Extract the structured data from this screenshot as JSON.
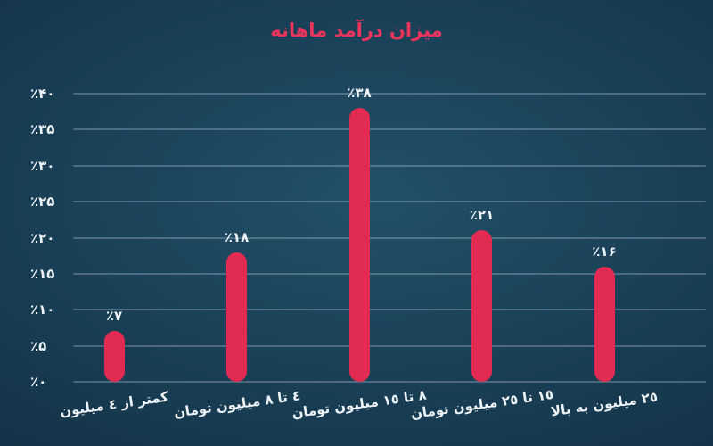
{
  "chart_data": {
    "type": "bar",
    "title": "میزان درآمد ماهانه",
    "direction": "rtl",
    "categories": [
      "کمتر از ٤ میلیون",
      "٤ تا ٨ میلیون تومان",
      "٨ تا ١٥ میلیون تومان",
      "١٥ تا ٢٥ میلیون تومان",
      "٢٥ میلیون به بالا"
    ],
    "values": [
      7,
      18,
      38,
      21,
      16
    ],
    "value_labels": [
      "٪۷",
      "٪۱۸",
      "٪۳۸",
      "٪۲۱",
      "٪۱۶"
    ],
    "y_ticks": [
      {
        "label": "٪۴۰",
        "value": 40
      },
      {
        "label": "٪۳۵",
        "value": 35
      },
      {
        "label": "٪۳۰",
        "value": 30
      },
      {
        "label": "٪۲۵",
        "value": 25
      },
      {
        "label": "٪۲۰",
        "value": 20
      },
      {
        "label": "٪۱۵",
        "value": 15
      },
      {
        "label": "٪۱۰",
        "value": 10
      },
      {
        "label": "٪۵",
        "value": 5
      },
      {
        "label": "٪۰",
        "value": 0
      }
    ],
    "ylim": [
      0,
      40
    ],
    "xlabel": "",
    "ylabel": "",
    "grid": true,
    "legend": false,
    "colors": {
      "bar": "#e22b52",
      "title": "#e9345c",
      "text": "#eef3f7",
      "gridline": "rgba(165,190,205,0.35)",
      "background_center": "#215169",
      "background_edge": "#0b2132"
    }
  }
}
